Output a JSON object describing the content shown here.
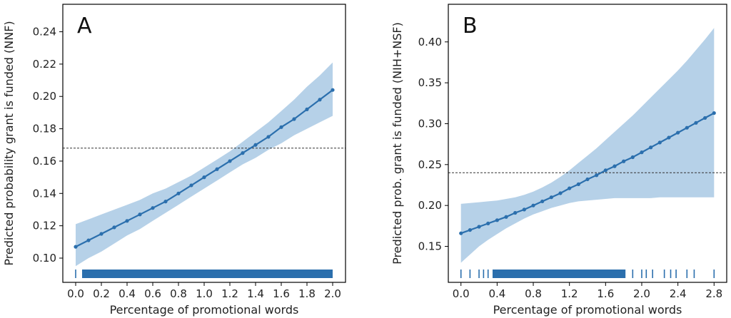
{
  "chart_data": [
    {
      "type": "line",
      "panel_label": "A",
      "xlabel": "Percentage of promotional words",
      "ylabel": "Predicted probability grant is funded (NNF)",
      "xlim": [
        -0.1,
        2.1
      ],
      "ylim": [
        0.085,
        0.257
      ],
      "xticks": [
        0.0,
        0.2,
        0.4,
        0.6,
        0.8,
        1.0,
        1.2,
        1.4,
        1.6,
        1.8,
        2.0
      ],
      "xtick_labels": [
        "0.0",
        "0.2",
        "0.4",
        "0.6",
        "0.8",
        "1.0",
        "1.2",
        "1.4",
        "1.6",
        "1.8",
        "2.0"
      ],
      "yticks": [
        0.1,
        0.12,
        0.14,
        0.16,
        0.18,
        0.2,
        0.22,
        0.24
      ],
      "ytick_labels": [
        "0.10",
        "0.12",
        "0.14",
        "0.16",
        "0.18",
        "0.20",
        "0.22",
        "0.24"
      ],
      "reference_line_y": 0.168,
      "series": [
        {
          "x": [
            0.0,
            0.1,
            0.2,
            0.3,
            0.4,
            0.5,
            0.6,
            0.7,
            0.8,
            0.9,
            1.0,
            1.1,
            1.2,
            1.3,
            1.4,
            1.5,
            1.6,
            1.7,
            1.8,
            1.9,
            2.0
          ],
          "y": [
            0.107,
            0.111,
            0.115,
            0.119,
            0.123,
            0.127,
            0.131,
            0.135,
            0.14,
            0.145,
            0.15,
            0.155,
            0.16,
            0.165,
            0.17,
            0.175,
            0.181,
            0.186,
            0.192,
            0.198,
            0.204
          ],
          "ci_lower": [
            0.095,
            0.1,
            0.104,
            0.109,
            0.114,
            0.118,
            0.123,
            0.128,
            0.133,
            0.138,
            0.143,
            0.148,
            0.153,
            0.158,
            0.162,
            0.167,
            0.171,
            0.176,
            0.18,
            0.184,
            0.188
          ],
          "ci_upper": [
            0.121,
            0.124,
            0.127,
            0.13,
            0.133,
            0.136,
            0.14,
            0.143,
            0.147,
            0.151,
            0.156,
            0.161,
            0.166,
            0.172,
            0.178,
            0.184,
            0.191,
            0.198,
            0.206,
            0.213,
            0.221
          ]
        }
      ],
      "rug_segments": [
        [
          0.0,
          0.0
        ],
        [
          0.05,
          2.0
        ]
      ],
      "colors": {
        "line": "#2b6fad",
        "band": "#b6d1e8",
        "rug": "#2b6fad",
        "reference": "#333333"
      },
      "grid": false
    },
    {
      "type": "line",
      "panel_label": "B",
      "xlabel": "Percentage of promotional words",
      "ylabel": "Predicted prob. grant is funded (NIH+NSF)",
      "xlim": [
        -0.14,
        2.94
      ],
      "ylim": [
        0.106,
        0.446
      ],
      "xticks": [
        0.0,
        0.4,
        0.8,
        1.2,
        1.6,
        2.0,
        2.4,
        2.8
      ],
      "xtick_labels": [
        "0.0",
        "0.4",
        "0.8",
        "1.2",
        "1.6",
        "2.0",
        "2.4",
        "2.8"
      ],
      "yticks": [
        0.15,
        0.2,
        0.25,
        0.3,
        0.35,
        0.4
      ],
      "ytick_labels": [
        "0.15",
        "0.20",
        "0.25",
        "0.30",
        "0.35",
        "0.40"
      ],
      "reference_line_y": 0.24,
      "series": [
        {
          "x": [
            0.0,
            0.1,
            0.2,
            0.3,
            0.4,
            0.5,
            0.6,
            0.7,
            0.8,
            0.9,
            1.0,
            1.1,
            1.2,
            1.3,
            1.4,
            1.5,
            1.6,
            1.7,
            1.8,
            1.9,
            2.0,
            2.1,
            2.2,
            2.3,
            2.4,
            2.5,
            2.6,
            2.7,
            2.8
          ],
          "y": [
            0.166,
            0.17,
            0.174,
            0.178,
            0.182,
            0.186,
            0.191,
            0.195,
            0.2,
            0.205,
            0.21,
            0.215,
            0.221,
            0.226,
            0.232,
            0.237,
            0.243,
            0.248,
            0.254,
            0.259,
            0.265,
            0.271,
            0.277,
            0.283,
            0.289,
            0.295,
            0.301,
            0.307,
            0.313
          ],
          "ci_lower": [
            0.13,
            0.14,
            0.15,
            0.158,
            0.165,
            0.172,
            0.178,
            0.184,
            0.189,
            0.193,
            0.197,
            0.2,
            0.203,
            0.205,
            0.206,
            0.207,
            0.208,
            0.209,
            0.209,
            0.209,
            0.209,
            0.209,
            0.21,
            0.21,
            0.21,
            0.21,
            0.21,
            0.21,
            0.21
          ],
          "ci_upper": [
            0.202,
            0.203,
            0.204,
            0.205,
            0.206,
            0.208,
            0.21,
            0.213,
            0.217,
            0.222,
            0.228,
            0.235,
            0.243,
            0.252,
            0.261,
            0.27,
            0.28,
            0.29,
            0.3,
            0.31,
            0.321,
            0.332,
            0.343,
            0.354,
            0.365,
            0.377,
            0.39,
            0.403,
            0.417
          ]
        }
      ],
      "rug_segments": [
        [
          0.0,
          0.0
        ],
        [
          0.1,
          0.1
        ],
        [
          0.2,
          0.2
        ],
        [
          0.25,
          0.25
        ],
        [
          0.3,
          0.3
        ],
        [
          0.35,
          0.45
        ],
        [
          0.5,
          0.5
        ],
        [
          0.55,
          0.55
        ],
        [
          0.62,
          0.62
        ],
        [
          0.68,
          0.68
        ],
        [
          0.75,
          0.75
        ],
        [
          0.82,
          0.82
        ],
        [
          0.88,
          0.88
        ],
        [
          0.95,
          0.95
        ],
        [
          1.0,
          1.0
        ],
        [
          0.35,
          1.82
        ],
        [
          1.9,
          1.9
        ],
        [
          2.0,
          2.0
        ],
        [
          2.05,
          2.05
        ],
        [
          2.12,
          2.12
        ],
        [
          2.25,
          2.25
        ],
        [
          2.32,
          2.32
        ],
        [
          2.38,
          2.38
        ],
        [
          2.5,
          2.5
        ],
        [
          2.58,
          2.58
        ],
        [
          2.8,
          2.8
        ]
      ],
      "colors": {
        "line": "#2b6fad",
        "band": "#b6d1e8",
        "rug": "#2b6fad",
        "reference": "#333333"
      },
      "grid": false
    }
  ]
}
